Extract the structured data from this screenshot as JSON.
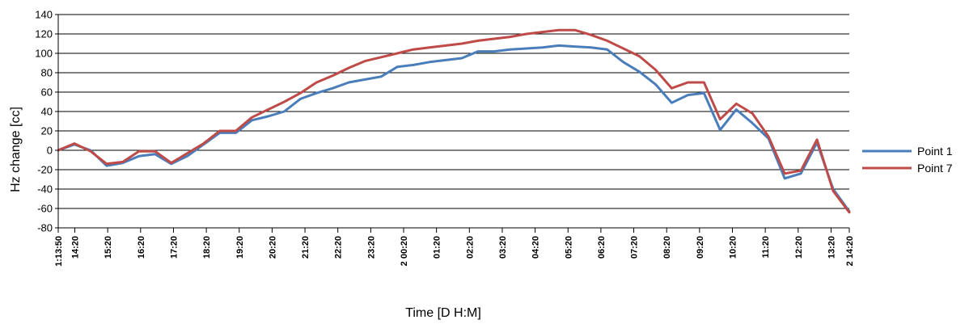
{
  "chart_data": {
    "type": "line",
    "title": "",
    "xlabel": "Time [D H:M]",
    "ylabel": "Hz change [cc]",
    "ylim": [
      -80,
      140
    ],
    "ytick_step": 20,
    "grid": true,
    "legend_position": "right",
    "x_tick_labels": [
      "1:13:50",
      "14:20",
      "15:20",
      "16:20",
      "17:20",
      "18:20",
      "19:20",
      "20:20",
      "21:20",
      "22:20",
      "23:20",
      "2 00:20",
      "01:20",
      "02:20",
      "03:20",
      "04:20",
      "05:20",
      "06:20",
      "07:20",
      "08:20",
      "09:20",
      "10:20",
      "11:20",
      "12:20",
      "13:20",
      "2 14:20"
    ],
    "series": [
      {
        "name": "Point 1",
        "color": "#4a7ebb",
        "values": [
          0,
          6,
          0,
          -16,
          -13,
          -6,
          -4,
          -14,
          -6,
          6,
          18,
          18,
          31,
          35,
          40,
          53,
          59,
          64,
          70,
          73,
          76,
          86,
          88,
          91,
          93,
          95,
          102,
          102,
          104,
          105,
          106,
          108,
          107,
          106,
          104,
          91,
          81,
          68,
          49,
          57,
          59,
          21,
          42,
          28,
          12,
          -29,
          -24,
          8,
          -40,
          -63
        ]
      },
      {
        "name": "Point 7",
        "color": "#be4b48",
        "values": [
          0,
          7,
          -1,
          -14,
          -12,
          -1,
          -1,
          -13,
          -3,
          7,
          20,
          20,
          34,
          42,
          50,
          59,
          70,
          77,
          85,
          92,
          96,
          100,
          104,
          106,
          108,
          110,
          113,
          115,
          117,
          120,
          122,
          124,
          124,
          119,
          113,
          105,
          97,
          83,
          64,
          70,
          70,
          32,
          48,
          38,
          14,
          -24,
          -21,
          11,
          -42,
          -64
        ]
      }
    ]
  }
}
